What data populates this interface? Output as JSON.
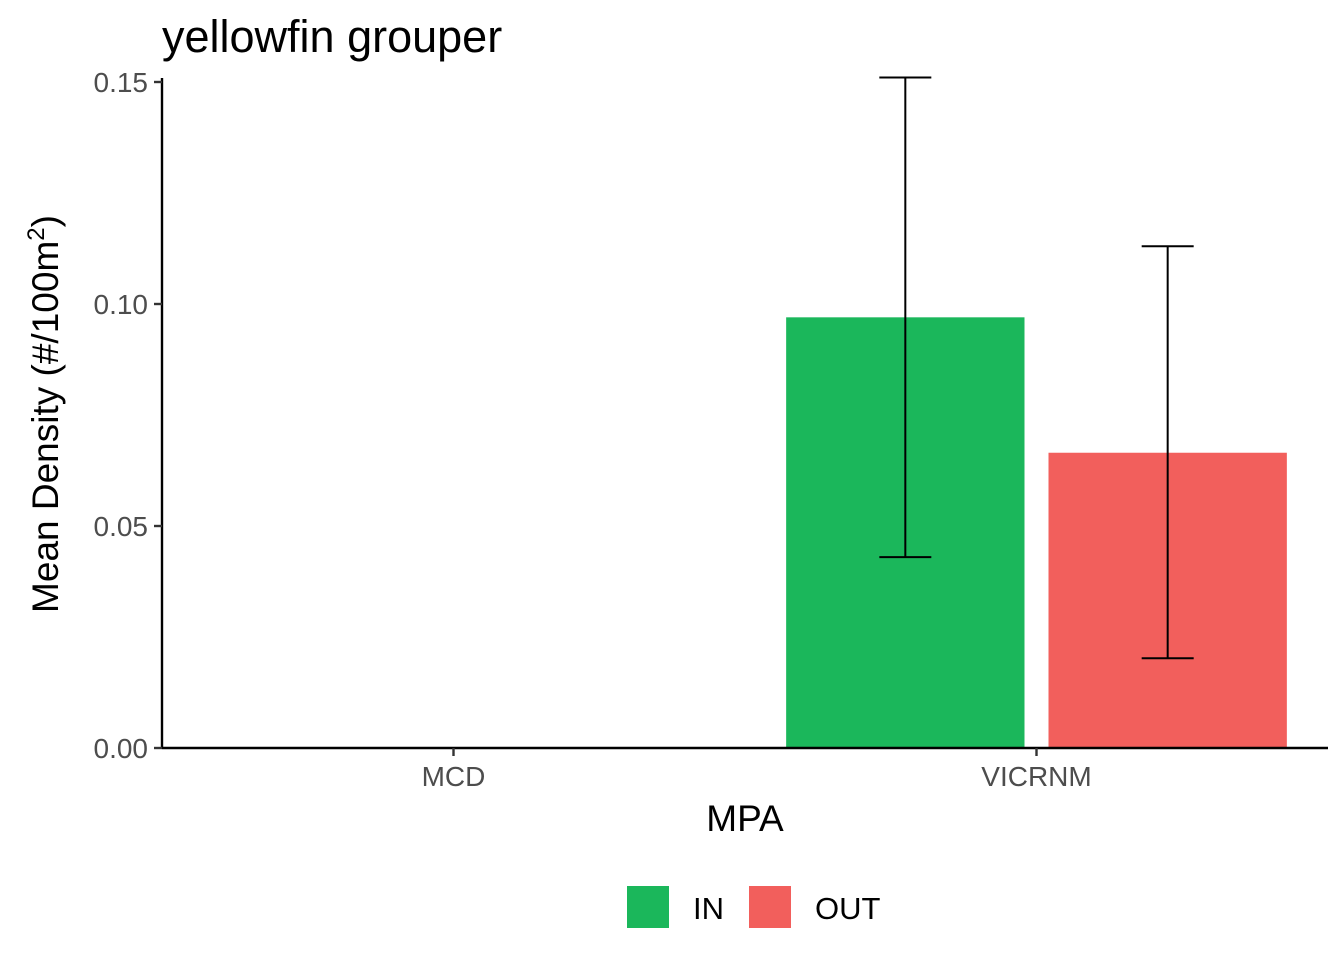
{
  "chart_data": {
    "type": "bar",
    "title": "yellowfin grouper",
    "xlabel": "MPA",
    "ylabel": "Mean Density (#/100m",
    "ylabel_superscript": "2",
    "ylabel_suffix": ")",
    "categories": [
      "MCD",
      "VICRNM"
    ],
    "series": [
      {
        "name": "IN",
        "color": "#1bb75b",
        "values": [
          0,
          0.097
        ],
        "error_low": [
          null,
          0.043
        ],
        "error_high": [
          null,
          0.151
        ]
      },
      {
        "name": "OUT",
        "color": "#f25f5c",
        "values": [
          0,
          0.0665
        ],
        "error_low": [
          null,
          0.0202
        ],
        "error_high": [
          null,
          0.113
        ]
      }
    ],
    "ylim": [
      0,
      0.15
    ],
    "yticks": [
      0,
      0.05,
      0.1,
      0.15
    ],
    "ytick_labels": [
      "0.00",
      "0.05",
      "0.10",
      "0.15"
    ],
    "grid": false,
    "legend_position": "bottom"
  }
}
